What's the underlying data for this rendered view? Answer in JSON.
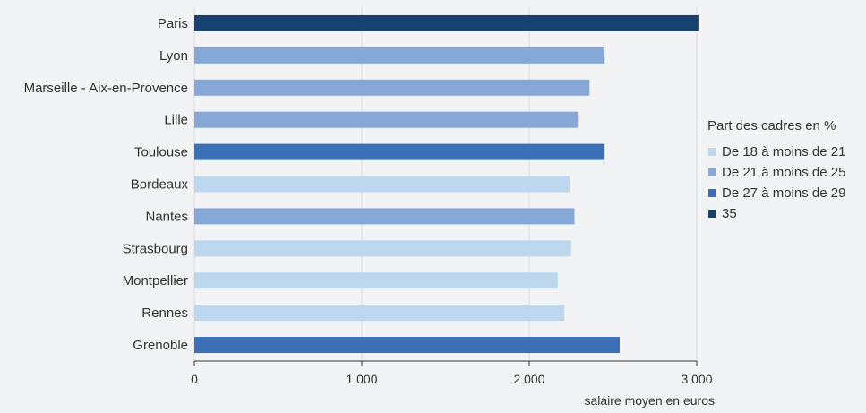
{
  "chart_data": {
    "type": "bar",
    "orientation": "horizontal",
    "categories": [
      "Paris",
      "Lyon",
      "Marseille - Aix-en-Provence",
      "Lille",
      "Toulouse",
      "Bordeaux",
      "Nantes",
      "Strasbourg",
      "Montpellier",
      "Rennes",
      "Grenoble"
    ],
    "values": [
      3010,
      2450,
      2360,
      2290,
      2450,
      2240,
      2270,
      2250,
      2170,
      2210,
      2540
    ],
    "groups": [
      3,
      1,
      1,
      1,
      2,
      0,
      1,
      0,
      0,
      0,
      2
    ],
    "xlabel": "salaire moyen en euros",
    "xlim": [
      0,
      3000
    ],
    "xticks": [
      0,
      1000,
      2000,
      3000
    ],
    "xtick_labels": [
      "0",
      "1 000",
      "2 000",
      "3 000"
    ],
    "grid": "vertical",
    "legend": {
      "title": "Part des cadres en %",
      "position": "right",
      "items": [
        {
          "label": "De 18 à moins de 21",
          "color": "#bdd7ee"
        },
        {
          "label": "De 21 à moins de 25",
          "color": "#86a8d6"
        },
        {
          "label": "De 27 à moins de 29",
          "color": "#3b6fb6"
        },
        {
          "label": "35",
          "color": "#17426f"
        }
      ]
    }
  }
}
